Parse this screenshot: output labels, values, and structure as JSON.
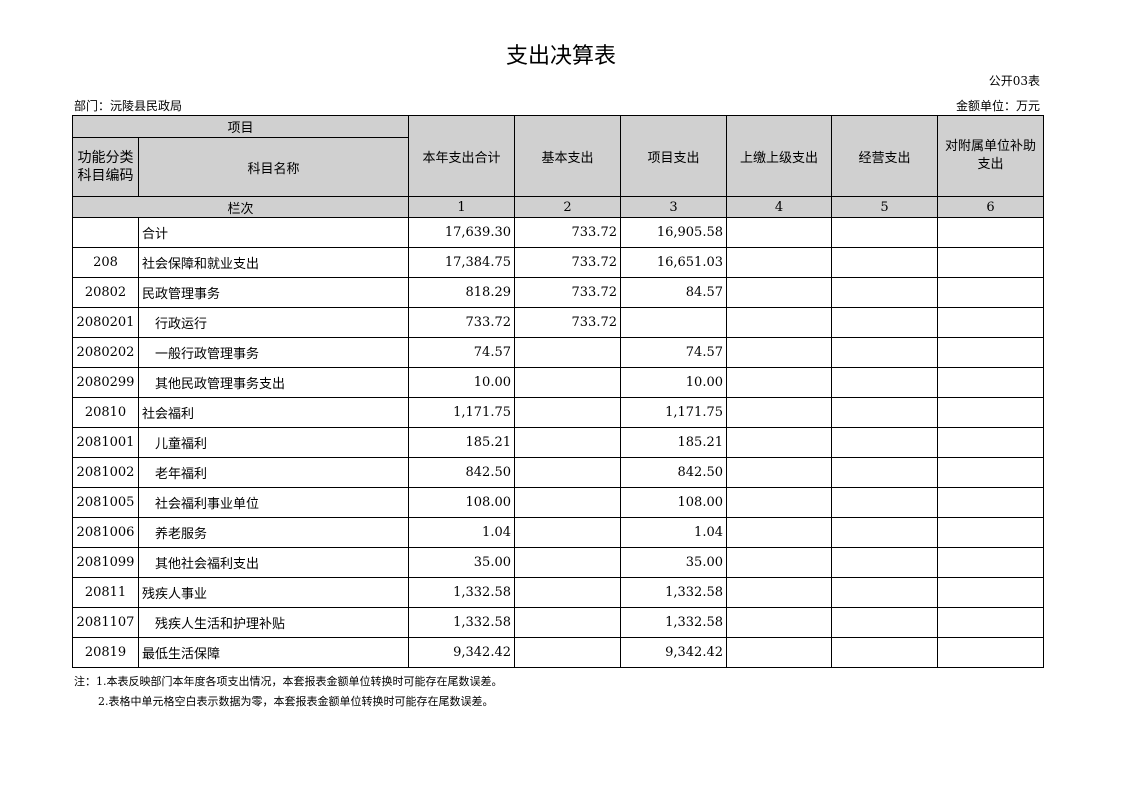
{
  "title": "支出决算表",
  "table_code": "公开03表",
  "department": "部门：沅陵县民政局",
  "unit": "金额单位：万元",
  "header": {
    "project": "项目",
    "code": "功能分类科目编码",
    "name": "科目名称",
    "cols": [
      "本年支出合计",
      "基本支出",
      "项目支出",
      "上缴上级支出",
      "经营支出",
      "对附属单位补助支出"
    ],
    "row_label": "栏次",
    "col_nums": [
      "1",
      "2",
      "3",
      "4",
      "5",
      "6"
    ]
  },
  "rows": [
    {
      "code": "",
      "name": "合计",
      "v": [
        "17,639.30",
        "733.72",
        "16,905.58",
        "",
        "",
        ""
      ]
    },
    {
      "code": "208",
      "name": "社会保障和就业支出",
      "v": [
        "17,384.75",
        "733.72",
        "16,651.03",
        "",
        "",
        ""
      ]
    },
    {
      "code": "20802",
      "name": "民政管理事务",
      "v": [
        "818.29",
        "733.72",
        "84.57",
        "",
        "",
        ""
      ]
    },
    {
      "code": "2080201",
      "name": "　行政运行",
      "v": [
        "733.72",
        "733.72",
        "",
        "",
        "",
        ""
      ]
    },
    {
      "code": "2080202",
      "name": "　一般行政管理事务",
      "v": [
        "74.57",
        "",
        "74.57",
        "",
        "",
        ""
      ]
    },
    {
      "code": "2080299",
      "name": "　其他民政管理事务支出",
      "v": [
        "10.00",
        "",
        "10.00",
        "",
        "",
        ""
      ]
    },
    {
      "code": "20810",
      "name": "社会福利",
      "v": [
        "1,171.75",
        "",
        "1,171.75",
        "",
        "",
        ""
      ]
    },
    {
      "code": "2081001",
      "name": "　儿童福利",
      "v": [
        "185.21",
        "",
        "185.21",
        "",
        "",
        ""
      ]
    },
    {
      "code": "2081002",
      "name": "　老年福利",
      "v": [
        "842.50",
        "",
        "842.50",
        "",
        "",
        ""
      ]
    },
    {
      "code": "2081005",
      "name": "　社会福利事业单位",
      "v": [
        "108.00",
        "",
        "108.00",
        "",
        "",
        ""
      ]
    },
    {
      "code": "2081006",
      "name": "　养老服务",
      "v": [
        "1.04",
        "",
        "1.04",
        "",
        "",
        ""
      ]
    },
    {
      "code": "2081099",
      "name": "　其他社会福利支出",
      "v": [
        "35.00",
        "",
        "35.00",
        "",
        "",
        ""
      ]
    },
    {
      "code": "20811",
      "name": "残疾人事业",
      "v": [
        "1,332.58",
        "",
        "1,332.58",
        "",
        "",
        ""
      ]
    },
    {
      "code": "2081107",
      "name": "　残疾人生活和护理补贴",
      "v": [
        "1,332.58",
        "",
        "1,332.58",
        "",
        "",
        ""
      ]
    },
    {
      "code": "20819",
      "name": "最低生活保障",
      "v": [
        "9,342.42",
        "",
        "9,342.42",
        "",
        "",
        ""
      ]
    }
  ],
  "notes": [
    "注：1.本表反映部门本年度各项支出情况，本套报表金额单位转换时可能存在尾数误差。",
    "2.表格中单元格空白表示数据为零，本套报表金额单位转换时可能存在尾数误差。"
  ]
}
